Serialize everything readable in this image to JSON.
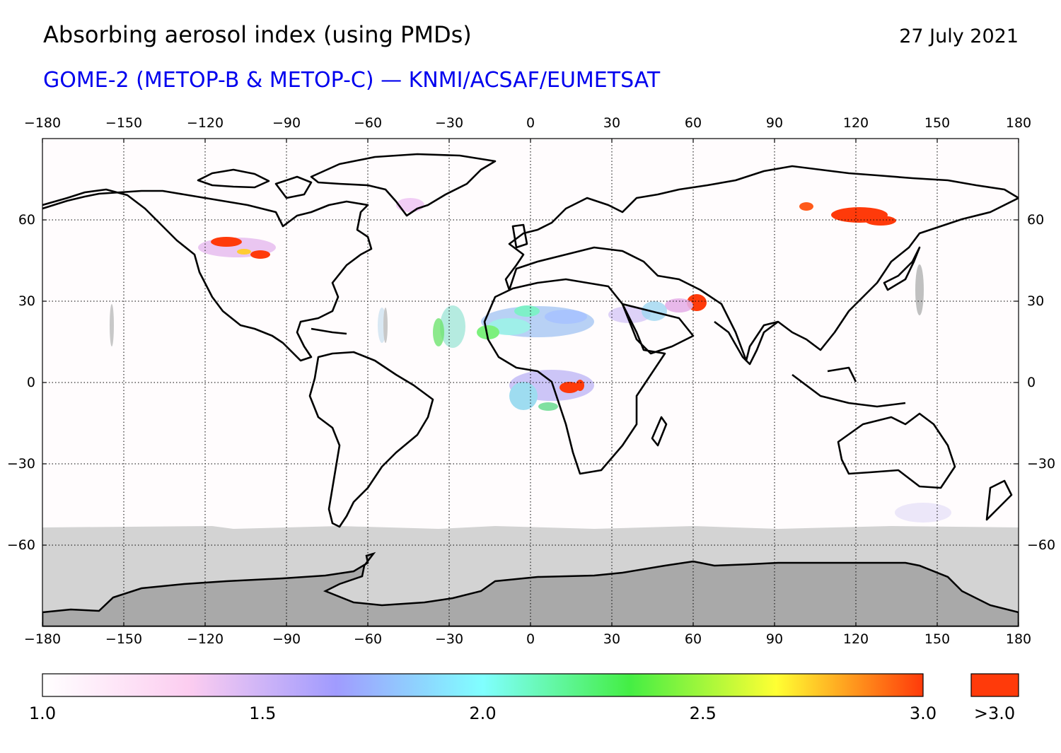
{
  "header": {
    "title": "Absorbing aerosol index (using PMDs)",
    "date": "27 July 2021",
    "subtitle": "GOME-2 (METOP-B & METOP-C) — KNMI/ACSAF/EUMETSAT"
  },
  "map": {
    "projection": "equirectangular",
    "lon_range": [
      -180,
      180
    ],
    "lat_range": [
      -90,
      90
    ],
    "lon_ticks": [
      "−180",
      "−150",
      "−120",
      "−90",
      "−60",
      "−30",
      "0",
      "30",
      "60",
      "90",
      "120",
      "150",
      "180"
    ],
    "lat_ticks": [
      "60",
      "30",
      "0",
      "−30",
      "−60"
    ],
    "grid": "dotted",
    "colors": {
      "background": "#ffffff",
      "no_data": "#d3d3d3",
      "antarctica": "#a9a9a9",
      "coastline": "#000000",
      "high_aai": "#ff3a0a"
    },
    "aerosol_regions": [
      {
        "region": "Siberia (smoke)",
        "level": ">3.0"
      },
      {
        "region": "Western Canada (smoke)",
        "level": ">3.0"
      },
      {
        "region": "Central Africa (smoke)",
        "level": ">3.0"
      },
      {
        "region": "Afghanistan / Iran (dust)",
        "level": ">3.0"
      },
      {
        "region": "Sahara / Sahel (dust)",
        "level": "1.5-2.5"
      }
    ]
  },
  "colorbar": {
    "min": 1.0,
    "max": 3.0,
    "labels": [
      "1.0",
      "1.5",
      "2.0",
      "2.5",
      "3.0"
    ],
    "overflow_label": ">3.0",
    "stops": [
      "#ffffff",
      "#fccdf0",
      "#a09bfe",
      "#80ffff",
      "#44ee44",
      "#ffff33",
      "#ff3a0a"
    ],
    "overflow_color": "#ff3a0a"
  }
}
